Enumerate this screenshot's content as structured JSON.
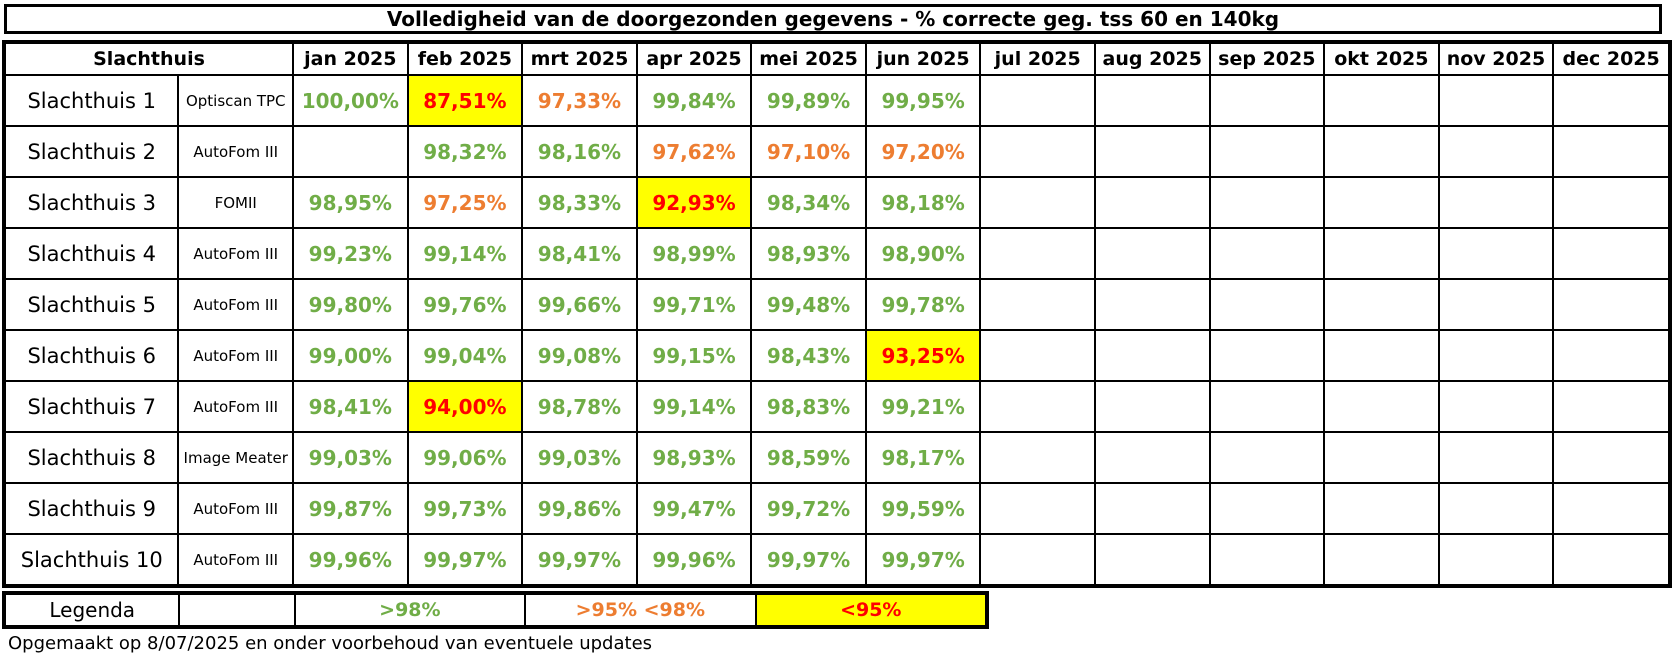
{
  "title": "Volledigheid van de doorgezonden gegevens  - % correcte geg. tss 60 en 140kg",
  "header": {
    "slachthuis": "Slachthuis",
    "months": [
      "jan 2025",
      "feb 2025",
      "mrt 2025",
      "apr 2025",
      "mei 2025",
      "jun 2025",
      "jul 2025",
      "aug 2025",
      "sep 2025",
      "okt 2025",
      "nov 2025",
      "dec 2025"
    ]
  },
  "colors": {
    "green": "#70ad47",
    "orange": "#ed7d31",
    "red": "#ff0000",
    "highlight": "#ffff00"
  },
  "rows": [
    {
      "name": "Slachthuis 1",
      "system": "Optiscan TPC",
      "values": [
        {
          "v": "100,00%",
          "c": "green"
        },
        {
          "v": "87,51%",
          "c": "red",
          "hl": true
        },
        {
          "v": "97,33%",
          "c": "orange"
        },
        {
          "v": "99,84%",
          "c": "green"
        },
        {
          "v": "99,89%",
          "c": "green"
        },
        {
          "v": "99,95%",
          "c": "green"
        },
        {
          "v": ""
        },
        {
          "v": ""
        },
        {
          "v": ""
        },
        {
          "v": ""
        },
        {
          "v": ""
        },
        {
          "v": ""
        }
      ]
    },
    {
      "name": "Slachthuis 2",
      "system": "AutoFom III",
      "values": [
        {
          "v": ""
        },
        {
          "v": "98,32%",
          "c": "green"
        },
        {
          "v": "98,16%",
          "c": "green"
        },
        {
          "v": "97,62%",
          "c": "orange"
        },
        {
          "v": "97,10%",
          "c": "orange"
        },
        {
          "v": "97,20%",
          "c": "orange"
        },
        {
          "v": ""
        },
        {
          "v": ""
        },
        {
          "v": ""
        },
        {
          "v": ""
        },
        {
          "v": ""
        },
        {
          "v": ""
        }
      ]
    },
    {
      "name": "Slachthuis 3",
      "system": "FOMII",
      "values": [
        {
          "v": "98,95%",
          "c": "green"
        },
        {
          "v": "97,25%",
          "c": "orange"
        },
        {
          "v": "98,33%",
          "c": "green"
        },
        {
          "v": "92,93%",
          "c": "red",
          "hl": true
        },
        {
          "v": "98,34%",
          "c": "green"
        },
        {
          "v": "98,18%",
          "c": "green"
        },
        {
          "v": ""
        },
        {
          "v": ""
        },
        {
          "v": ""
        },
        {
          "v": ""
        },
        {
          "v": ""
        },
        {
          "v": ""
        }
      ]
    },
    {
      "name": "Slachthuis 4",
      "system": "AutoFom III",
      "values": [
        {
          "v": "99,23%",
          "c": "green"
        },
        {
          "v": "99,14%",
          "c": "green"
        },
        {
          "v": "98,41%",
          "c": "green"
        },
        {
          "v": "98,99%",
          "c": "green"
        },
        {
          "v": "98,93%",
          "c": "green"
        },
        {
          "v": "98,90%",
          "c": "green"
        },
        {
          "v": ""
        },
        {
          "v": ""
        },
        {
          "v": ""
        },
        {
          "v": ""
        },
        {
          "v": ""
        },
        {
          "v": ""
        }
      ]
    },
    {
      "name": "Slachthuis 5",
      "system": "AutoFom III",
      "values": [
        {
          "v": "99,80%",
          "c": "green"
        },
        {
          "v": "99,76%",
          "c": "green"
        },
        {
          "v": "99,66%",
          "c": "green"
        },
        {
          "v": "99,71%",
          "c": "green"
        },
        {
          "v": "99,48%",
          "c": "green"
        },
        {
          "v": "99,78%",
          "c": "green"
        },
        {
          "v": ""
        },
        {
          "v": ""
        },
        {
          "v": ""
        },
        {
          "v": ""
        },
        {
          "v": ""
        },
        {
          "v": ""
        }
      ]
    },
    {
      "name": "Slachthuis 6",
      "system": "AutoFom III",
      "values": [
        {
          "v": "99,00%",
          "c": "green"
        },
        {
          "v": "99,04%",
          "c": "green"
        },
        {
          "v": "99,08%",
          "c": "green"
        },
        {
          "v": "99,15%",
          "c": "green"
        },
        {
          "v": "98,43%",
          "c": "green"
        },
        {
          "v": "93,25%",
          "c": "red",
          "hl": true
        },
        {
          "v": ""
        },
        {
          "v": ""
        },
        {
          "v": ""
        },
        {
          "v": ""
        },
        {
          "v": ""
        },
        {
          "v": ""
        }
      ]
    },
    {
      "name": "Slachthuis 7",
      "system": "AutoFom III",
      "values": [
        {
          "v": "98,41%",
          "c": "green"
        },
        {
          "v": "94,00%",
          "c": "red",
          "hl": true
        },
        {
          "v": "98,78%",
          "c": "green"
        },
        {
          "v": "99,14%",
          "c": "green"
        },
        {
          "v": "98,83%",
          "c": "green"
        },
        {
          "v": "99,21%",
          "c": "green"
        },
        {
          "v": ""
        },
        {
          "v": ""
        },
        {
          "v": ""
        },
        {
          "v": ""
        },
        {
          "v": ""
        },
        {
          "v": ""
        }
      ]
    },
    {
      "name": "Slachthuis 8",
      "system": "Image Meater",
      "values": [
        {
          "v": "99,03%",
          "c": "green"
        },
        {
          "v": "99,06%",
          "c": "green"
        },
        {
          "v": "99,03%",
          "c": "green"
        },
        {
          "v": "98,93%",
          "c": "green"
        },
        {
          "v": "98,59%",
          "c": "green"
        },
        {
          "v": "98,17%",
          "c": "green"
        },
        {
          "v": ""
        },
        {
          "v": ""
        },
        {
          "v": ""
        },
        {
          "v": ""
        },
        {
          "v": ""
        },
        {
          "v": ""
        }
      ]
    },
    {
      "name": "Slachthuis 9",
      "system": "AutoFom III",
      "values": [
        {
          "v": "99,87%",
          "c": "green"
        },
        {
          "v": "99,73%",
          "c": "green"
        },
        {
          "v": "99,86%",
          "c": "green"
        },
        {
          "v": "99,47%",
          "c": "green"
        },
        {
          "v": "99,72%",
          "c": "green"
        },
        {
          "v": "99,59%",
          "c": "green"
        },
        {
          "v": ""
        },
        {
          "v": ""
        },
        {
          "v": ""
        },
        {
          "v": ""
        },
        {
          "v": ""
        },
        {
          "v": ""
        }
      ]
    },
    {
      "name": "Slachthuis 10",
      "system": "AutoFom III",
      "values": [
        {
          "v": "99,96%",
          "c": "green"
        },
        {
          "v": "99,97%",
          "c": "green"
        },
        {
          "v": "99,97%",
          "c": "green"
        },
        {
          "v": "99,96%",
          "c": "green"
        },
        {
          "v": "99,97%",
          "c": "green"
        },
        {
          "v": "99,97%",
          "c": "green"
        },
        {
          "v": ""
        },
        {
          "v": ""
        },
        {
          "v": ""
        },
        {
          "v": ""
        },
        {
          "v": ""
        },
        {
          "v": ""
        }
      ]
    }
  ],
  "legend": {
    "label": "Legenda",
    "green_text": ">98%",
    "orange_text": ">95% <98%",
    "red_text": "<95%"
  },
  "footnote": "Opgemaakt op 8/07/2025 en onder voorbehoud van eventuele updates"
}
